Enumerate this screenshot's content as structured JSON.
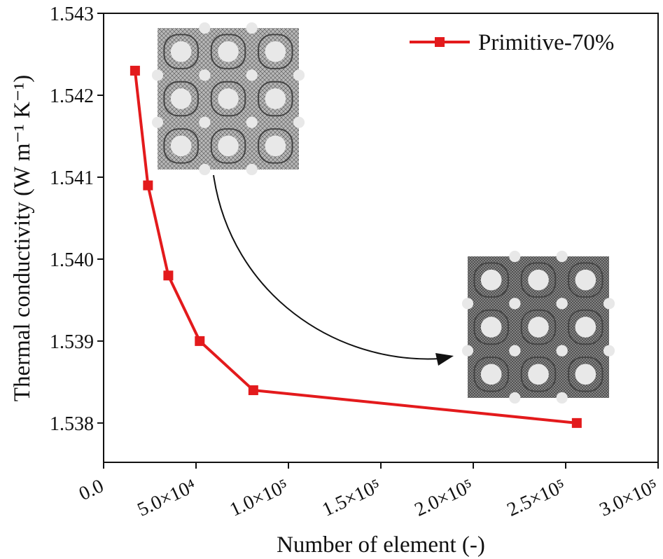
{
  "chart_data": {
    "type": "line",
    "x_label": "Number of element (-)",
    "y_label": "Thermal conductivity (W m⁻¹ K⁻¹)",
    "x": [
      17000,
      24000,
      35000,
      52000,
      81000,
      256000
    ],
    "series": [
      {
        "name": "Primitive-70%",
        "color": "#e31a1c",
        "values": [
          1.5423,
          1.5409,
          1.5398,
          1.539,
          1.5384,
          1.538
        ]
      }
    ],
    "xlim": [
      0,
      300000
    ],
    "xticks": [
      {
        "value": 0,
        "label": "0.0"
      },
      {
        "value": 50000,
        "label": "5.0×10⁴"
      },
      {
        "value": 100000,
        "label": "1.0×10⁵"
      },
      {
        "value": 150000,
        "label": "1.5×10⁵"
      },
      {
        "value": 200000,
        "label": "2.0×10⁵"
      },
      {
        "value": 250000,
        "label": "2.5×10⁵"
      },
      {
        "value": 300000,
        "label": "3.0×10⁵"
      }
    ],
    "ylim": [
      1.53752,
      1.543
    ],
    "yticks": [
      1.538,
      1.539,
      {
        "value": 1.54,
        "label": "1.540"
      },
      1.541,
      1.542,
      1.543
    ],
    "legend": "upper right"
  }
}
